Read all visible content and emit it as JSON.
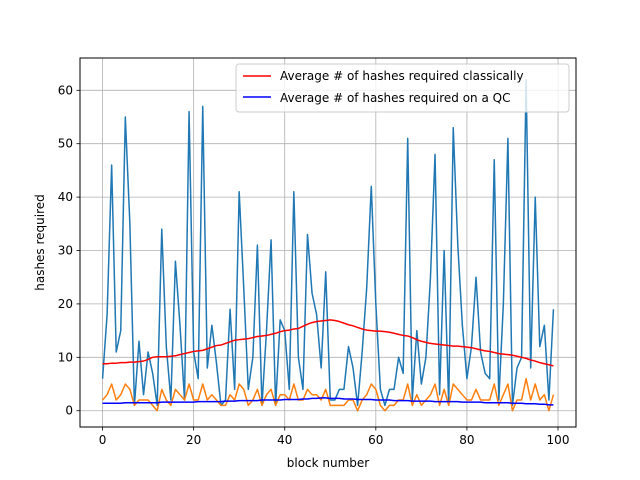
{
  "chart_data": {
    "type": "line",
    "title": "",
    "xlabel": "block number",
    "ylabel": "hashes required",
    "xlim": [
      -4.95,
      103.95
    ],
    "ylim": [
      -3.05,
      66.05
    ],
    "grid": true,
    "legend_position": "top-right",
    "xticks": [
      0,
      20,
      40,
      60,
      80,
      100
    ],
    "yticks": [
      0,
      10,
      20,
      30,
      40,
      50,
      60
    ],
    "x": [
      0,
      1,
      2,
      3,
      4,
      5,
      6,
      7,
      8,
      9,
      10,
      11,
      12,
      13,
      14,
      15,
      16,
      17,
      18,
      19,
      20,
      21,
      22,
      23,
      24,
      25,
      26,
      27,
      28,
      29,
      30,
      31,
      32,
      33,
      34,
      35,
      36,
      37,
      38,
      39,
      40,
      41,
      42,
      43,
      44,
      45,
      46,
      47,
      48,
      49,
      50,
      51,
      52,
      53,
      54,
      55,
      56,
      57,
      58,
      59,
      60,
      61,
      62,
      63,
      64,
      65,
      66,
      67,
      68,
      69,
      70,
      71,
      72,
      73,
      74,
      75,
      76,
      77,
      78,
      79,
      80,
      81,
      82,
      83,
      84,
      85,
      86,
      87,
      88,
      89,
      90,
      91,
      92,
      93,
      94,
      95,
      96,
      97,
      98,
      99
    ],
    "series": [
      {
        "values": [
          6,
          18,
          46,
          11,
          15,
          55,
          35,
          1,
          13,
          3,
          11,
          7,
          1,
          34,
          12,
          2,
          28,
          16,
          2,
          56,
          11,
          6,
          57,
          8,
          16,
          9,
          1,
          2,
          19,
          4,
          41,
          23,
          4,
          10,
          31,
          1,
          15,
          32,
          1,
          17,
          15,
          4,
          41,
          10,
          4,
          33,
          22,
          18,
          8,
          26,
          2,
          2,
          4,
          4,
          12,
          8,
          1,
          11,
          23,
          42,
          20,
          4,
          1,
          4,
          4,
          10,
          7,
          51,
          2,
          15,
          5,
          10,
          25,
          48,
          3,
          30,
          1,
          53,
          31,
          16,
          6,
          12,
          25,
          11,
          7,
          6,
          47,
          2,
          20,
          51,
          1,
          8,
          10,
          62,
          8,
          40,
          12,
          16,
          2,
          19
        ],
        "color": "#1f77b4"
      },
      {
        "values": [
          2,
          3,
          5,
          2,
          3,
          5,
          4,
          1,
          2,
          2,
          2,
          1,
          0,
          4,
          2,
          1,
          4,
          3,
          2,
          5,
          2,
          2,
          5,
          2,
          3,
          2,
          1,
          1,
          3,
          2,
          5,
          4,
          1,
          2,
          4,
          1,
          3,
          4,
          1,
          3,
          3,
          2,
          5,
          2,
          2,
          4,
          3,
          3,
          2,
          4,
          1,
          1,
          1,
          1,
          2,
          2,
          0,
          2,
          3,
          5,
          4,
          1,
          0,
          1,
          1,
          2,
          2,
          5,
          1,
          3,
          1,
          2,
          3,
          5,
          1,
          4,
          1,
          5,
          4,
          3,
          2,
          2,
          4,
          2,
          2,
          2,
          5,
          1,
          3,
          5,
          0,
          2,
          2,
          6,
          2,
          5,
          2,
          3,
          0,
          3
        ],
        "color": "#ff7f0e"
      },
      {
        "name": "Average # of hashes required classically",
        "values": [
          8.8,
          8.8,
          8.9,
          8.9,
          9.0,
          9.0,
          9.1,
          9.1,
          9.2,
          9.3,
          9.6,
          10.0,
          10.1,
          10.1,
          10.1,
          10.2,
          10.3,
          10.5,
          10.7,
          10.9,
          11.1,
          11.2,
          11.3,
          11.6,
          11.9,
          12.2,
          12.3,
          12.6,
          12.9,
          13.2,
          13.3,
          13.4,
          13.5,
          13.7,
          13.9,
          14.0,
          14.1,
          14.3,
          14.5,
          14.8,
          15.0,
          15.1,
          15.3,
          15.4,
          15.8,
          16.2,
          16.5,
          16.7,
          16.8,
          16.9,
          17.0,
          16.9,
          16.7,
          16.4,
          16.1,
          15.9,
          15.6,
          15.3,
          15.1,
          15.0,
          14.9,
          14.9,
          14.8,
          14.7,
          14.5,
          14.3,
          14.1,
          14.0,
          13.7,
          13.3,
          13.0,
          12.8,
          12.6,
          12.5,
          12.4,
          12.3,
          12.2,
          12.1,
          12.1,
          12.0,
          11.9,
          11.8,
          11.6,
          11.4,
          11.2,
          11.1,
          10.9,
          10.7,
          10.6,
          10.5,
          10.4,
          10.2,
          10.0,
          9.8,
          9.5,
          9.3,
          9.0,
          8.8,
          8.6,
          8.4
        ],
        "color": "#ff0000"
      },
      {
        "name": "Average # of hashes required on a QC",
        "values": [
          1.4,
          1.4,
          1.4,
          1.4,
          1.4,
          1.5,
          1.5,
          1.5,
          1.5,
          1.5,
          1.5,
          1.5,
          1.5,
          1.6,
          1.6,
          1.6,
          1.6,
          1.6,
          1.6,
          1.6,
          1.6,
          1.7,
          1.7,
          1.7,
          1.7,
          1.7,
          1.7,
          1.8,
          1.8,
          1.8,
          1.9,
          1.9,
          1.9,
          1.9,
          1.9,
          2.0,
          2.0,
          2.0,
          2.0,
          2.0,
          2.1,
          2.1,
          2.1,
          2.1,
          2.2,
          2.2,
          2.3,
          2.3,
          2.4,
          2.4,
          2.3,
          2.3,
          2.3,
          2.2,
          2.2,
          2.2,
          2.1,
          2.1,
          2.1,
          2.1,
          2.0,
          2.0,
          2.0,
          2.0,
          1.9,
          1.9,
          1.9,
          1.9,
          1.8,
          1.8,
          1.8,
          1.8,
          1.8,
          1.7,
          1.7,
          1.7,
          1.7,
          1.7,
          1.7,
          1.6,
          1.6,
          1.6,
          1.6,
          1.6,
          1.5,
          1.5,
          1.5,
          1.5,
          1.5,
          1.5,
          1.4,
          1.4,
          1.4,
          1.3,
          1.3,
          1.3,
          1.2,
          1.2,
          1.1,
          1.1
        ],
        "color": "#0000ff"
      }
    ]
  }
}
